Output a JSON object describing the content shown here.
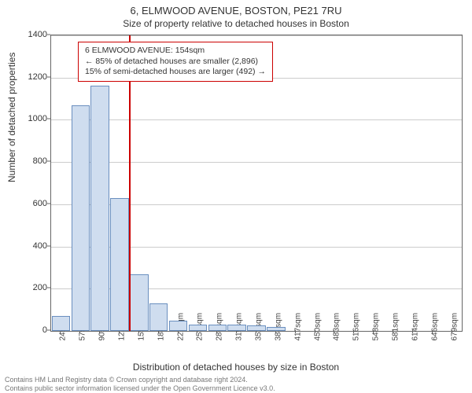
{
  "title": "6, ELMWOOD AVENUE, BOSTON, PE21 7RU",
  "subtitle": "Size of property relative to detached houses in Boston",
  "ylabel": "Number of detached properties",
  "xlabel": "Distribution of detached houses by size in Boston",
  "footer1": "Contains HM Land Registry data © Crown copyright and database right 2024.",
  "footer2": "Contains public sector information licensed under the Open Government Licence v3.0.",
  "info_box": {
    "line1": "6 ELMWOOD AVENUE: 154sqm",
    "line2": "← 85% of detached houses are smaller (2,896)",
    "line3": "15% of semi-detached houses are larger (492) →"
  },
  "chart": {
    "type": "histogram",
    "ylim": [
      0,
      1400
    ],
    "yticks": [
      0,
      200,
      400,
      600,
      800,
      1000,
      1200,
      1400
    ],
    "grid_color": "#cccccc",
    "bar_fill": "#cfddef",
    "bar_stroke": "#6a8fbf",
    "marker_color": "#cc0000",
    "marker_value": 154,
    "x_start": 24,
    "x_step": 32.6,
    "categories": [
      "24sqm",
      "57sqm",
      "90sqm",
      "122sqm",
      "155sqm",
      "188sqm",
      "221sqm",
      "253sqm",
      "286sqm",
      "319sqm",
      "352sqm",
      "384sqm",
      "417sqm",
      "450sqm",
      "483sqm",
      "516sqm",
      "548sqm",
      "581sqm",
      "614sqm",
      "646sqm",
      "679sqm"
    ],
    "values": [
      70,
      1070,
      1160,
      630,
      270,
      130,
      50,
      30,
      30,
      30,
      25,
      20,
      0,
      0,
      0,
      0,
      0,
      0,
      0,
      0,
      0
    ]
  }
}
